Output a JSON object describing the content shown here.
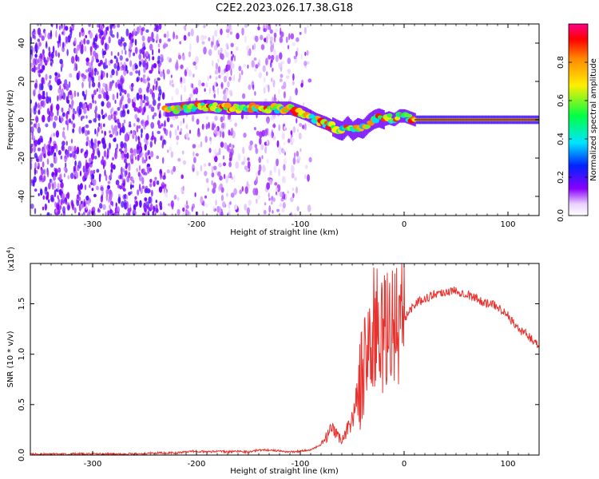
{
  "title": "C2E2.2023.026.17.38.G18",
  "chart_data": [
    {
      "type": "heatmap",
      "title": "C2E2.2023.026.17.38.G18",
      "xlabel": "Height of straight line (km)",
      "ylabel": "Frequency (Hz)",
      "xlim": [
        -360,
        130
      ],
      "ylim": [
        -50,
        50
      ],
      "x_ticks": [
        -300,
        -200,
        -100,
        0,
        100
      ],
      "y_ticks": [
        -40,
        -20,
        0,
        20,
        40
      ],
      "colorbar": {
        "label": "Normalized spectral amplitude",
        "range": [
          0,
          1
        ],
        "ticks": [
          0.0,
          0.2,
          0.4,
          0.6,
          0.8
        ],
        "colormap": [
          "#ffffff",
          "#e9d2ff",
          "#8a00ff",
          "#0022ff",
          "#00e5ff",
          "#00ff44",
          "#ffee00",
          "#ff8800",
          "#ff0000",
          "#ff0088"
        ]
      },
      "ridge": {
        "x": [
          -230,
          -210,
          -190,
          -170,
          -150,
          -130,
          -110,
          -95,
          -85,
          -75,
          -65,
          -60,
          -55,
          -50,
          -45,
          -40,
          -35,
          -30,
          -25,
          -20,
          -15,
          -10,
          -5,
          0,
          5,
          10,
          130
        ],
        "y": [
          5,
          6,
          7,
          6,
          6,
          6,
          6,
          3,
          0,
          -2,
          -5,
          -6,
          -3,
          -6,
          -4,
          -5,
          -2,
          0,
          1,
          0,
          1,
          0,
          2,
          2,
          1,
          0,
          0
        ]
      }
    },
    {
      "type": "line",
      "xlabel": "Height of straight line (km)",
      "ylabel": "SNR (10 * v/v)",
      "y_multiplier": "(x10",
      "y_multiplier_exp": "4",
      "y_multiplier_close": ")",
      "xlim": [
        -360,
        130
      ],
      "ylim": [
        0,
        1.9
      ],
      "x_ticks": [
        -300,
        -200,
        -100,
        0,
        100
      ],
      "y_ticks": [
        0.0,
        0.5,
        1.0,
        1.5
      ],
      "y_tick_labels": [
        "0.0",
        "0.5",
        "1.0",
        "1.5"
      ],
      "color": "#e8322e",
      "series": [
        {
          "x": [
            -360,
            -340,
            -320,
            -300,
            -280,
            -260,
            -240,
            -220,
            -200,
            -190,
            -180,
            -170,
            -160,
            -150,
            -140,
            -130,
            -120,
            -110,
            -100,
            -90,
            -80,
            -70,
            -60,
            -50,
            -45,
            -40,
            -35,
            -30,
            -25,
            -20,
            -15,
            -10,
            -5,
            0,
            10,
            20,
            30,
            40,
            50,
            60,
            70,
            80,
            90,
            100,
            110,
            120,
            130
          ],
          "y": [
            0.01,
            0.01,
            0.01,
            0.01,
            0.01,
            0.01,
            0.02,
            0.02,
            0.04,
            0.03,
            0.04,
            0.03,
            0.04,
            0.03,
            0.05,
            0.05,
            0.04,
            0.03,
            0.04,
            0.05,
            0.1,
            0.25,
            0.15,
            0.35,
            0.6,
            0.8,
            1.1,
            1.2,
            1.3,
            1.1,
            1.25,
            1.35,
            1.3,
            1.35,
            1.5,
            1.55,
            1.6,
            1.62,
            1.63,
            1.6,
            1.55,
            1.5,
            1.48,
            1.38,
            1.25,
            1.18,
            1.08
          ]
        }
      ]
    }
  ]
}
